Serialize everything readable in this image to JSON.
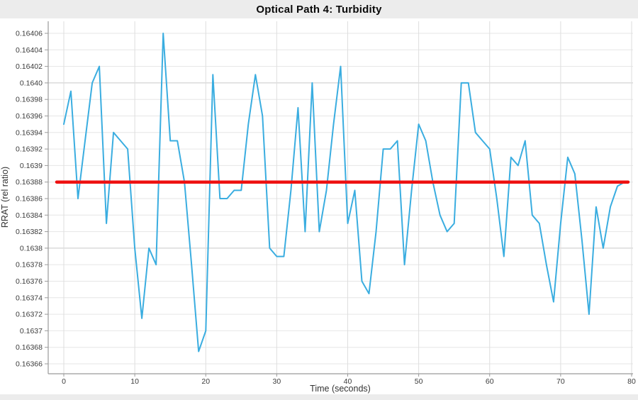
{
  "header": {
    "title": "Optical Path 4: Turbidity"
  },
  "colors": {
    "series_blue": "#3aade0",
    "trend_red": "#ee1111",
    "grid_minor": "#e6e6e6",
    "grid_major": "#c9c9c9",
    "grid_vertical": "#dedede",
    "axis_line": "#9a9a9a",
    "tick_text": "#3b3b3b",
    "band_gray": "#ececec"
  },
  "chart_data": {
    "type": "line",
    "title": "Optical Path 4: Turbidity",
    "xlabel": "Time (seconds)",
    "ylabel": "RRAT (rel ratio)",
    "xlim": [
      -2.2,
      80.2
    ],
    "ylim": [
      0.163648,
      0.164074
    ],
    "grid": true,
    "legend": false,
    "x_ticks": [
      {
        "t": 0,
        "label": "0"
      },
      {
        "t": 10,
        "label": "10"
      },
      {
        "t": 20,
        "label": "20"
      },
      {
        "t": 30,
        "label": "30"
      },
      {
        "t": 40,
        "label": "40"
      },
      {
        "t": 50,
        "label": "50"
      },
      {
        "t": 60,
        "label": "60"
      },
      {
        "t": 70,
        "label": "70"
      },
      {
        "t": 80,
        "label": "80"
      }
    ],
    "y_ticks": [
      {
        "v": 0.16406,
        "label": "0.16406",
        "major": false
      },
      {
        "v": 0.16404,
        "label": "0.16404",
        "major": false
      },
      {
        "v": 0.16402,
        "label": "0.16402",
        "major": false
      },
      {
        "v": 0.164,
        "label": "0.1640",
        "major": true
      },
      {
        "v": 0.16398,
        "label": "0.16398",
        "major": false
      },
      {
        "v": 0.16396,
        "label": "0.16396",
        "major": false
      },
      {
        "v": 0.16394,
        "label": "0.16394",
        "major": false
      },
      {
        "v": 0.16392,
        "label": "0.16392",
        "major": false
      },
      {
        "v": 0.1639,
        "label": "0.1639",
        "major": false
      },
      {
        "v": 0.16388,
        "label": "0.16388",
        "major": false
      },
      {
        "v": 0.16386,
        "label": "0.16386",
        "major": false
      },
      {
        "v": 0.16384,
        "label": "0.16384",
        "major": false
      },
      {
        "v": 0.16382,
        "label": "0.16382",
        "major": false
      },
      {
        "v": 0.1638,
        "label": "0.1638",
        "major": true
      },
      {
        "v": 0.16378,
        "label": "0.16378",
        "major": false
      },
      {
        "v": 0.16376,
        "label": "0.16376",
        "major": false
      },
      {
        "v": 0.16374,
        "label": "0.16374",
        "major": false
      },
      {
        "v": 0.16372,
        "label": "0.16372",
        "major": false
      },
      {
        "v": 0.1637,
        "label": "0.1637",
        "major": false
      },
      {
        "v": 0.16368,
        "label": "0.16368",
        "major": false
      },
      {
        "v": 0.16366,
        "label": "0.16366",
        "major": false
      }
    ],
    "series": [
      {
        "name": "RRAT",
        "color": "#3aade0",
        "x": [
          0,
          1,
          2,
          3,
          4,
          5,
          6,
          7,
          8,
          9,
          10,
          11,
          12,
          13,
          14,
          15,
          16,
          17,
          18,
          19,
          20,
          21,
          22,
          23,
          24,
          25,
          26,
          27,
          28,
          29,
          30,
          31,
          32,
          33,
          34,
          35,
          36,
          37,
          38,
          39,
          40,
          41,
          42,
          43,
          44,
          45,
          46,
          47,
          48,
          49,
          50,
          51,
          52,
          53,
          54,
          55,
          56,
          57,
          58,
          59,
          60,
          61,
          62,
          63,
          64,
          65,
          66,
          67,
          68,
          69,
          70,
          71,
          72,
          73,
          74,
          75,
          76,
          77,
          78,
          79
        ],
        "values": [
          0.16395,
          0.16399,
          0.16386,
          0.16393,
          0.164,
          0.16402,
          0.16383,
          0.16394,
          0.16393,
          0.16392,
          0.1638,
          0.163715,
          0.1638,
          0.16378,
          0.16406,
          0.16393,
          0.16393,
          0.16388,
          0.16378,
          0.163675,
          0.1637,
          0.16401,
          0.16386,
          0.16386,
          0.16387,
          0.16387,
          0.16395,
          0.16401,
          0.16396,
          0.1638,
          0.16379,
          0.16379,
          0.16387,
          0.16397,
          0.16382,
          0.164,
          0.16382,
          0.16387,
          0.16395,
          0.16402,
          0.16383,
          0.16387,
          0.16376,
          0.163745,
          0.16382,
          0.16392,
          0.16392,
          0.16393,
          0.16378,
          0.16387,
          0.16395,
          0.16393,
          0.16388,
          0.16384,
          0.16382,
          0.16383,
          0.164,
          0.164,
          0.16394,
          0.16393,
          0.16392,
          0.16386,
          0.16379,
          0.16391,
          0.1639,
          0.16393,
          0.16384,
          0.16383,
          0.16378,
          0.163735,
          0.16383,
          0.16391,
          0.16389,
          0.16381,
          0.16372,
          0.16385,
          0.1638,
          0.16385,
          0.163875,
          0.16388
        ]
      }
    ],
    "trend_line": {
      "value": 0.16388,
      "color": "#ee1111",
      "x_start": -1,
      "x_end": 79.5
    }
  }
}
